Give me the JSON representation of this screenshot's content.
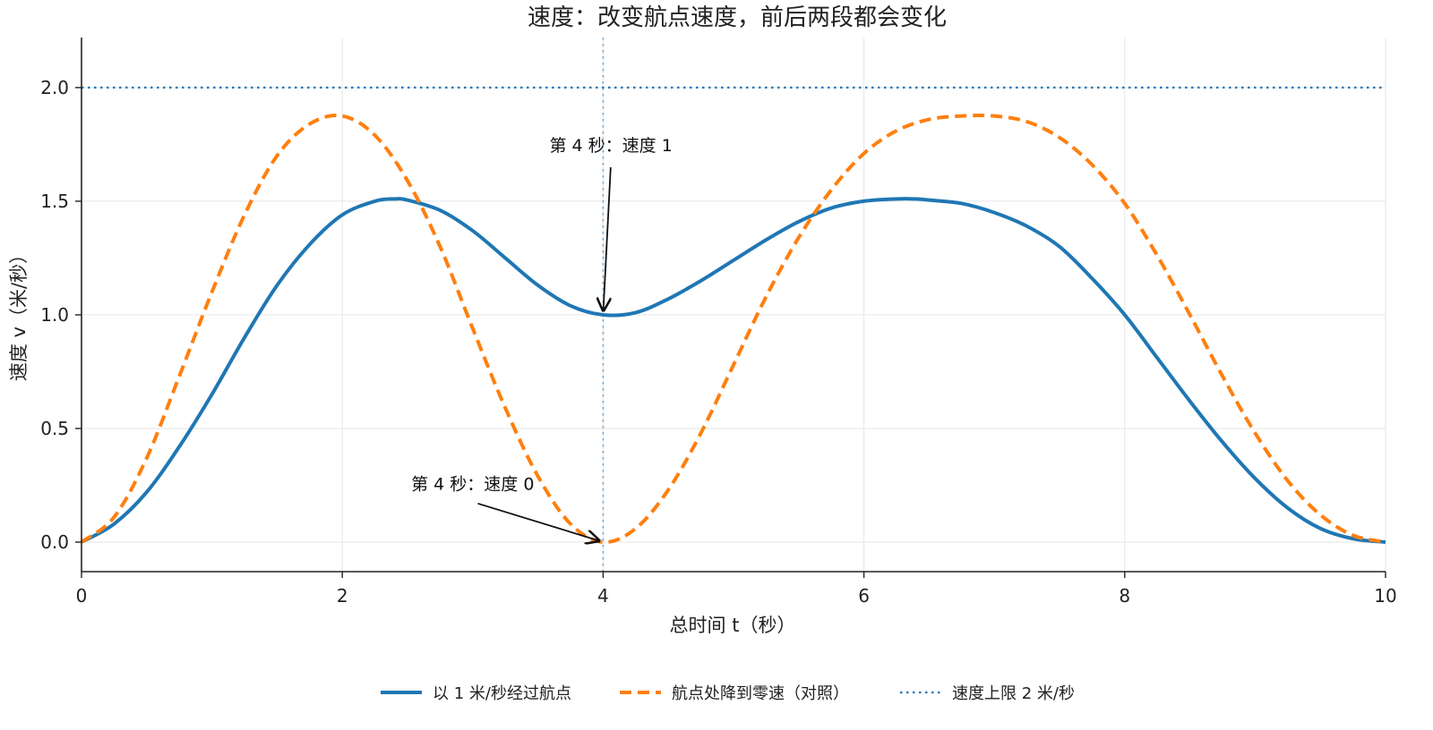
{
  "chart_data": {
    "type": "line",
    "title": "速度：改变航点速度，前后两段都会变化",
    "xlabel": "总时间 t（秒）",
    "ylabel": "速度 v（米/秒）",
    "xlim": [
      0,
      10
    ],
    "ylim": [
      -0.13,
      2.22
    ],
    "xticks": [
      0,
      2,
      4,
      6,
      8,
      10
    ],
    "yticks": [
      0.0,
      0.5,
      1.0,
      1.5,
      2.0
    ],
    "xtick_labels": [
      "0",
      "2",
      "4",
      "6",
      "8",
      "10"
    ],
    "ytick_labels": [
      "0.0",
      "0.5",
      "1.0",
      "1.5",
      "2.0"
    ],
    "grid": true,
    "legend_position": "bottom-center",
    "series": [
      {
        "name": "以 1 米/秒经过航点",
        "color": "#1f77b4",
        "style": "solid",
        "x": [
          0,
          0.25,
          0.5,
          0.75,
          1,
          1.25,
          1.5,
          1.75,
          2,
          2.25,
          2.4,
          2.5,
          2.75,
          3,
          3.25,
          3.5,
          3.75,
          4,
          4.25,
          4.5,
          4.75,
          5,
          5.25,
          5.5,
          5.75,
          6,
          6.25,
          6.4,
          6.5,
          6.75,
          7,
          7.25,
          7.5,
          7.75,
          8,
          8.25,
          8.5,
          8.75,
          9,
          9.25,
          9.5,
          9.75,
          10
        ],
        "y": [
          0,
          0.08,
          0.22,
          0.42,
          0.65,
          0.9,
          1.13,
          1.31,
          1.44,
          1.5,
          1.51,
          1.505,
          1.46,
          1.37,
          1.25,
          1.13,
          1.04,
          1.0,
          1.01,
          1.07,
          1.15,
          1.24,
          1.33,
          1.41,
          1.47,
          1.5,
          1.51,
          1.51,
          1.505,
          1.49,
          1.45,
          1.39,
          1.3,
          1.16,
          1.0,
          0.81,
          0.62,
          0.44,
          0.28,
          0.15,
          0.06,
          0.015,
          0
        ]
      },
      {
        "name": "航点处降到零速（对照）",
        "color": "#ff7f0e",
        "style": "dashed",
        "x": [
          0,
          0.25,
          0.5,
          0.75,
          1,
          1.25,
          1.5,
          1.75,
          2,
          2.25,
          2.5,
          2.75,
          3,
          3.25,
          3.5,
          3.75,
          4,
          4.25,
          4.5,
          4.75,
          5,
          5.25,
          5.5,
          5.75,
          6,
          6.25,
          6.5,
          6.75,
          7,
          7.25,
          7.5,
          7.75,
          8,
          8.25,
          8.5,
          8.75,
          9,
          9.25,
          9.5,
          9.75,
          10
        ],
        "y": [
          0,
          0.11,
          0.37,
          0.73,
          1.1,
          1.44,
          1.7,
          1.84,
          1.875,
          1.79,
          1.59,
          1.3,
          0.94,
          0.59,
          0.29,
          0.08,
          0,
          0.06,
          0.23,
          0.48,
          0.78,
          1.08,
          1.34,
          1.55,
          1.71,
          1.81,
          1.86,
          1.875,
          1.875,
          1.85,
          1.78,
          1.66,
          1.49,
          1.26,
          1.0,
          0.73,
          0.48,
          0.27,
          0.12,
          0.03,
          0
        ]
      },
      {
        "name": "速度上限 2 米/秒",
        "color": "#1f77b4",
        "style": "dotted",
        "x": [
          0,
          10
        ],
        "y": [
          2.0,
          2.0
        ]
      }
    ],
    "vlines": [
      {
        "x": 4,
        "color": "#6fa8dc",
        "style": "dotted"
      }
    ],
    "annotations": [
      {
        "text": "第 4 秒：速度 1",
        "point": [
          4,
          1.0
        ],
        "text_pos": [
          4.06,
          1.72
        ]
      },
      {
        "text": "第 4 秒：速度 0",
        "point": [
          4,
          0.0
        ],
        "text_pos": [
          3.0,
          0.23
        ]
      }
    ]
  }
}
